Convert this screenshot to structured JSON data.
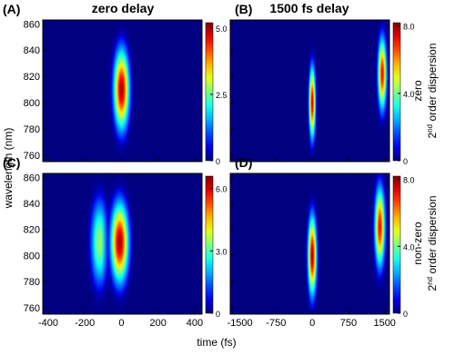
{
  "figure": {
    "xlabel": "time (fs)",
    "ylabel": "wavelength (nm)",
    "column_titles": [
      "zero delay",
      "1500 fs delay"
    ],
    "row_labels": [
      {
        "line1": "zero",
        "base": "2",
        "sup": "nd",
        "rest": " order dispersion"
      },
      {
        "line1": "non-zero",
        "base": "2",
        "sup": "nd",
        "rest": " order dispersion"
      }
    ]
  },
  "chart_data": [
    {
      "type": "heatmap",
      "title": "(A)",
      "xlim": [
        -430,
        440
      ],
      "xticks": [
        -400,
        -200,
        0,
        200,
        400
      ],
      "ylim": [
        755,
        863
      ],
      "yticks": [
        760,
        780,
        800,
        820,
        840,
        860
      ],
      "clim": [
        0,
        5.2
      ],
      "cticks": [
        0,
        2.5,
        {
          "value": 5,
          "label": "5.0"
        }
      ],
      "blobs": [
        {
          "x": 0,
          "y": 810,
          "sx": 28,
          "sy": 20,
          "peak": 5.0
        }
      ]
    },
    {
      "type": "heatmap",
      "title": "(B)",
      "xlim": [
        -1700,
        1600
      ],
      "xticks": [
        -1500,
        -750,
        0,
        750,
        1500
      ],
      "ylim": [
        755,
        863
      ],
      "yticks": [
        760,
        780,
        800,
        820,
        840,
        860
      ],
      "clim": [
        0,
        8.2
      ],
      "cticks": [
        0,
        {
          "value": 4,
          "label": "4.0"
        },
        {
          "value": 8,
          "label": "8.0"
        }
      ],
      "blobs": [
        {
          "x": 0,
          "y": 800,
          "sx": 45,
          "sy": 18,
          "peak": 7.5
        },
        {
          "x": 1450,
          "y": 822,
          "sx": 60,
          "sy": 18,
          "peak": 7.2
        }
      ]
    },
    {
      "type": "heatmap",
      "title": "(C)",
      "xlim": [
        -430,
        440
      ],
      "xticks": [
        -400,
        -200,
        0,
        200,
        400
      ],
      "ylim": [
        755,
        863
      ],
      "yticks": [
        760,
        780,
        800,
        820,
        840,
        860
      ],
      "clim": [
        0,
        6.6
      ],
      "cticks": [
        0,
        {
          "value": 3,
          "label": "3.0"
        },
        {
          "value": 6,
          "label": "6.0"
        }
      ],
      "blobs": [
        {
          "x": -120,
          "y": 810,
          "sx": 32,
          "sy": 22,
          "peak": 3.5
        },
        {
          "x": -10,
          "y": 810,
          "sx": 32,
          "sy": 20,
          "peak": 6.4
        }
      ]
    },
    {
      "type": "heatmap",
      "title": "(D)",
      "xlim": [
        -1700,
        1600
      ],
      "xticks": [
        -1500,
        -750,
        0,
        750,
        1500
      ],
      "ylim": [
        755,
        863
      ],
      "yticks": [
        760,
        780,
        800,
        820,
        840,
        860
      ],
      "clim": [
        0,
        8.2
      ],
      "cticks": [
        0,
        {
          "value": 4,
          "label": "4.0"
        },
        {
          "value": 8,
          "label": "8.0"
        }
      ],
      "blobs": [
        {
          "x": 0,
          "y": 800,
          "sx": 60,
          "sy": 20,
          "peak": 7.8
        },
        {
          "x": 1400,
          "y": 822,
          "sx": 70,
          "sy": 20,
          "peak": 7.2
        }
      ]
    }
  ]
}
